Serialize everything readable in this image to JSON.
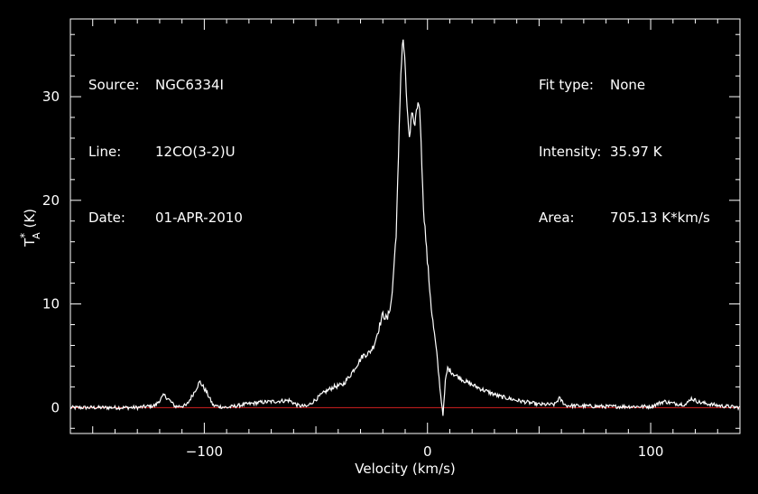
{
  "header": {
    "source_label": "Source:",
    "source_value": "NGC6334I",
    "line_label": "Line:",
    "line_value": "12CO(3-2)U",
    "date_label": "Date:",
    "date_value": "01-APR-2010",
    "fit_label": "Fit type:",
    "fit_value": "None",
    "intensity_label": "Intensity:",
    "intensity_value": "35.97 K",
    "area_label": "Area:",
    "area_value": "705.13 K*km/s"
  },
  "chart_data": {
    "type": "line",
    "xlabel": "Velocity (km/s)",
    "ylabel": "T*A (K)",
    "xlim": [
      -160,
      140
    ],
    "ylim": [
      -2.5,
      37.5
    ],
    "xticks": [
      -100,
      0,
      100
    ],
    "yticks": [
      0,
      10,
      20,
      30
    ],
    "grid": false,
    "colors": {
      "background": "#000000",
      "series": "#ffffff",
      "baseline": "#d42020",
      "axes": "#ffffff"
    },
    "baseline": 0,
    "series": [
      {
        "values": [
          [
            -160,
            0.0
          ],
          [
            -130,
            0.0
          ],
          [
            -122,
            0.2
          ],
          [
            -118,
            1.2
          ],
          [
            -116,
            0.8
          ],
          [
            -113,
            0.1
          ],
          [
            -108,
            0.2
          ],
          [
            -105,
            1.3
          ],
          [
            -102,
            2.5
          ],
          [
            -99,
            1.5
          ],
          [
            -96,
            0.2
          ],
          [
            -90,
            0.0
          ],
          [
            -82,
            0.3
          ],
          [
            -75,
            0.5
          ],
          [
            -68,
            0.6
          ],
          [
            -62,
            0.7
          ],
          [
            -58,
            0.2
          ],
          [
            -54,
            0.1
          ],
          [
            -50,
            0.8
          ],
          [
            -46,
            1.5
          ],
          [
            -42,
            2.0
          ],
          [
            -38,
            2.2
          ],
          [
            -35,
            3.0
          ],
          [
            -32,
            4.0
          ],
          [
            -29,
            5.0
          ],
          [
            -26,
            5.3
          ],
          [
            -24,
            6.0
          ],
          [
            -22,
            7.5
          ],
          [
            -20,
            9.0
          ],
          [
            -18,
            8.5
          ],
          [
            -16,
            10.5
          ],
          [
            -14,
            17.0
          ],
          [
            -13,
            24.0
          ],
          [
            -12,
            32.0
          ],
          [
            -11,
            35.97
          ],
          [
            -10,
            33.0
          ],
          [
            -9,
            28.0
          ],
          [
            -8,
            26.0
          ],
          [
            -7,
            28.5
          ],
          [
            -6,
            27.0
          ],
          [
            -5,
            28.5
          ],
          [
            -4,
            29.8
          ],
          [
            -3,
            27.0
          ],
          [
            -2,
            20.0
          ],
          [
            0,
            14.0
          ],
          [
            2,
            9.0
          ],
          [
            4,
            5.5
          ],
          [
            6,
            1.0
          ],
          [
            7,
            -0.7
          ],
          [
            8,
            2.5
          ],
          [
            9,
            3.8
          ],
          [
            12,
            3.2
          ],
          [
            18,
            2.4
          ],
          [
            25,
            1.7
          ],
          [
            32,
            1.1
          ],
          [
            40,
            0.7
          ],
          [
            50,
            0.3
          ],
          [
            57,
            0.3
          ],
          [
            59,
            0.9
          ],
          [
            62,
            0.2
          ],
          [
            80,
            0.1
          ],
          [
            100,
            0.1
          ],
          [
            106,
            0.6
          ],
          [
            110,
            0.4
          ],
          [
            116,
            0.3
          ],
          [
            118,
            0.9
          ],
          [
            122,
            0.5
          ],
          [
            130,
            0.2
          ],
          [
            140,
            0.0
          ]
        ]
      }
    ]
  }
}
